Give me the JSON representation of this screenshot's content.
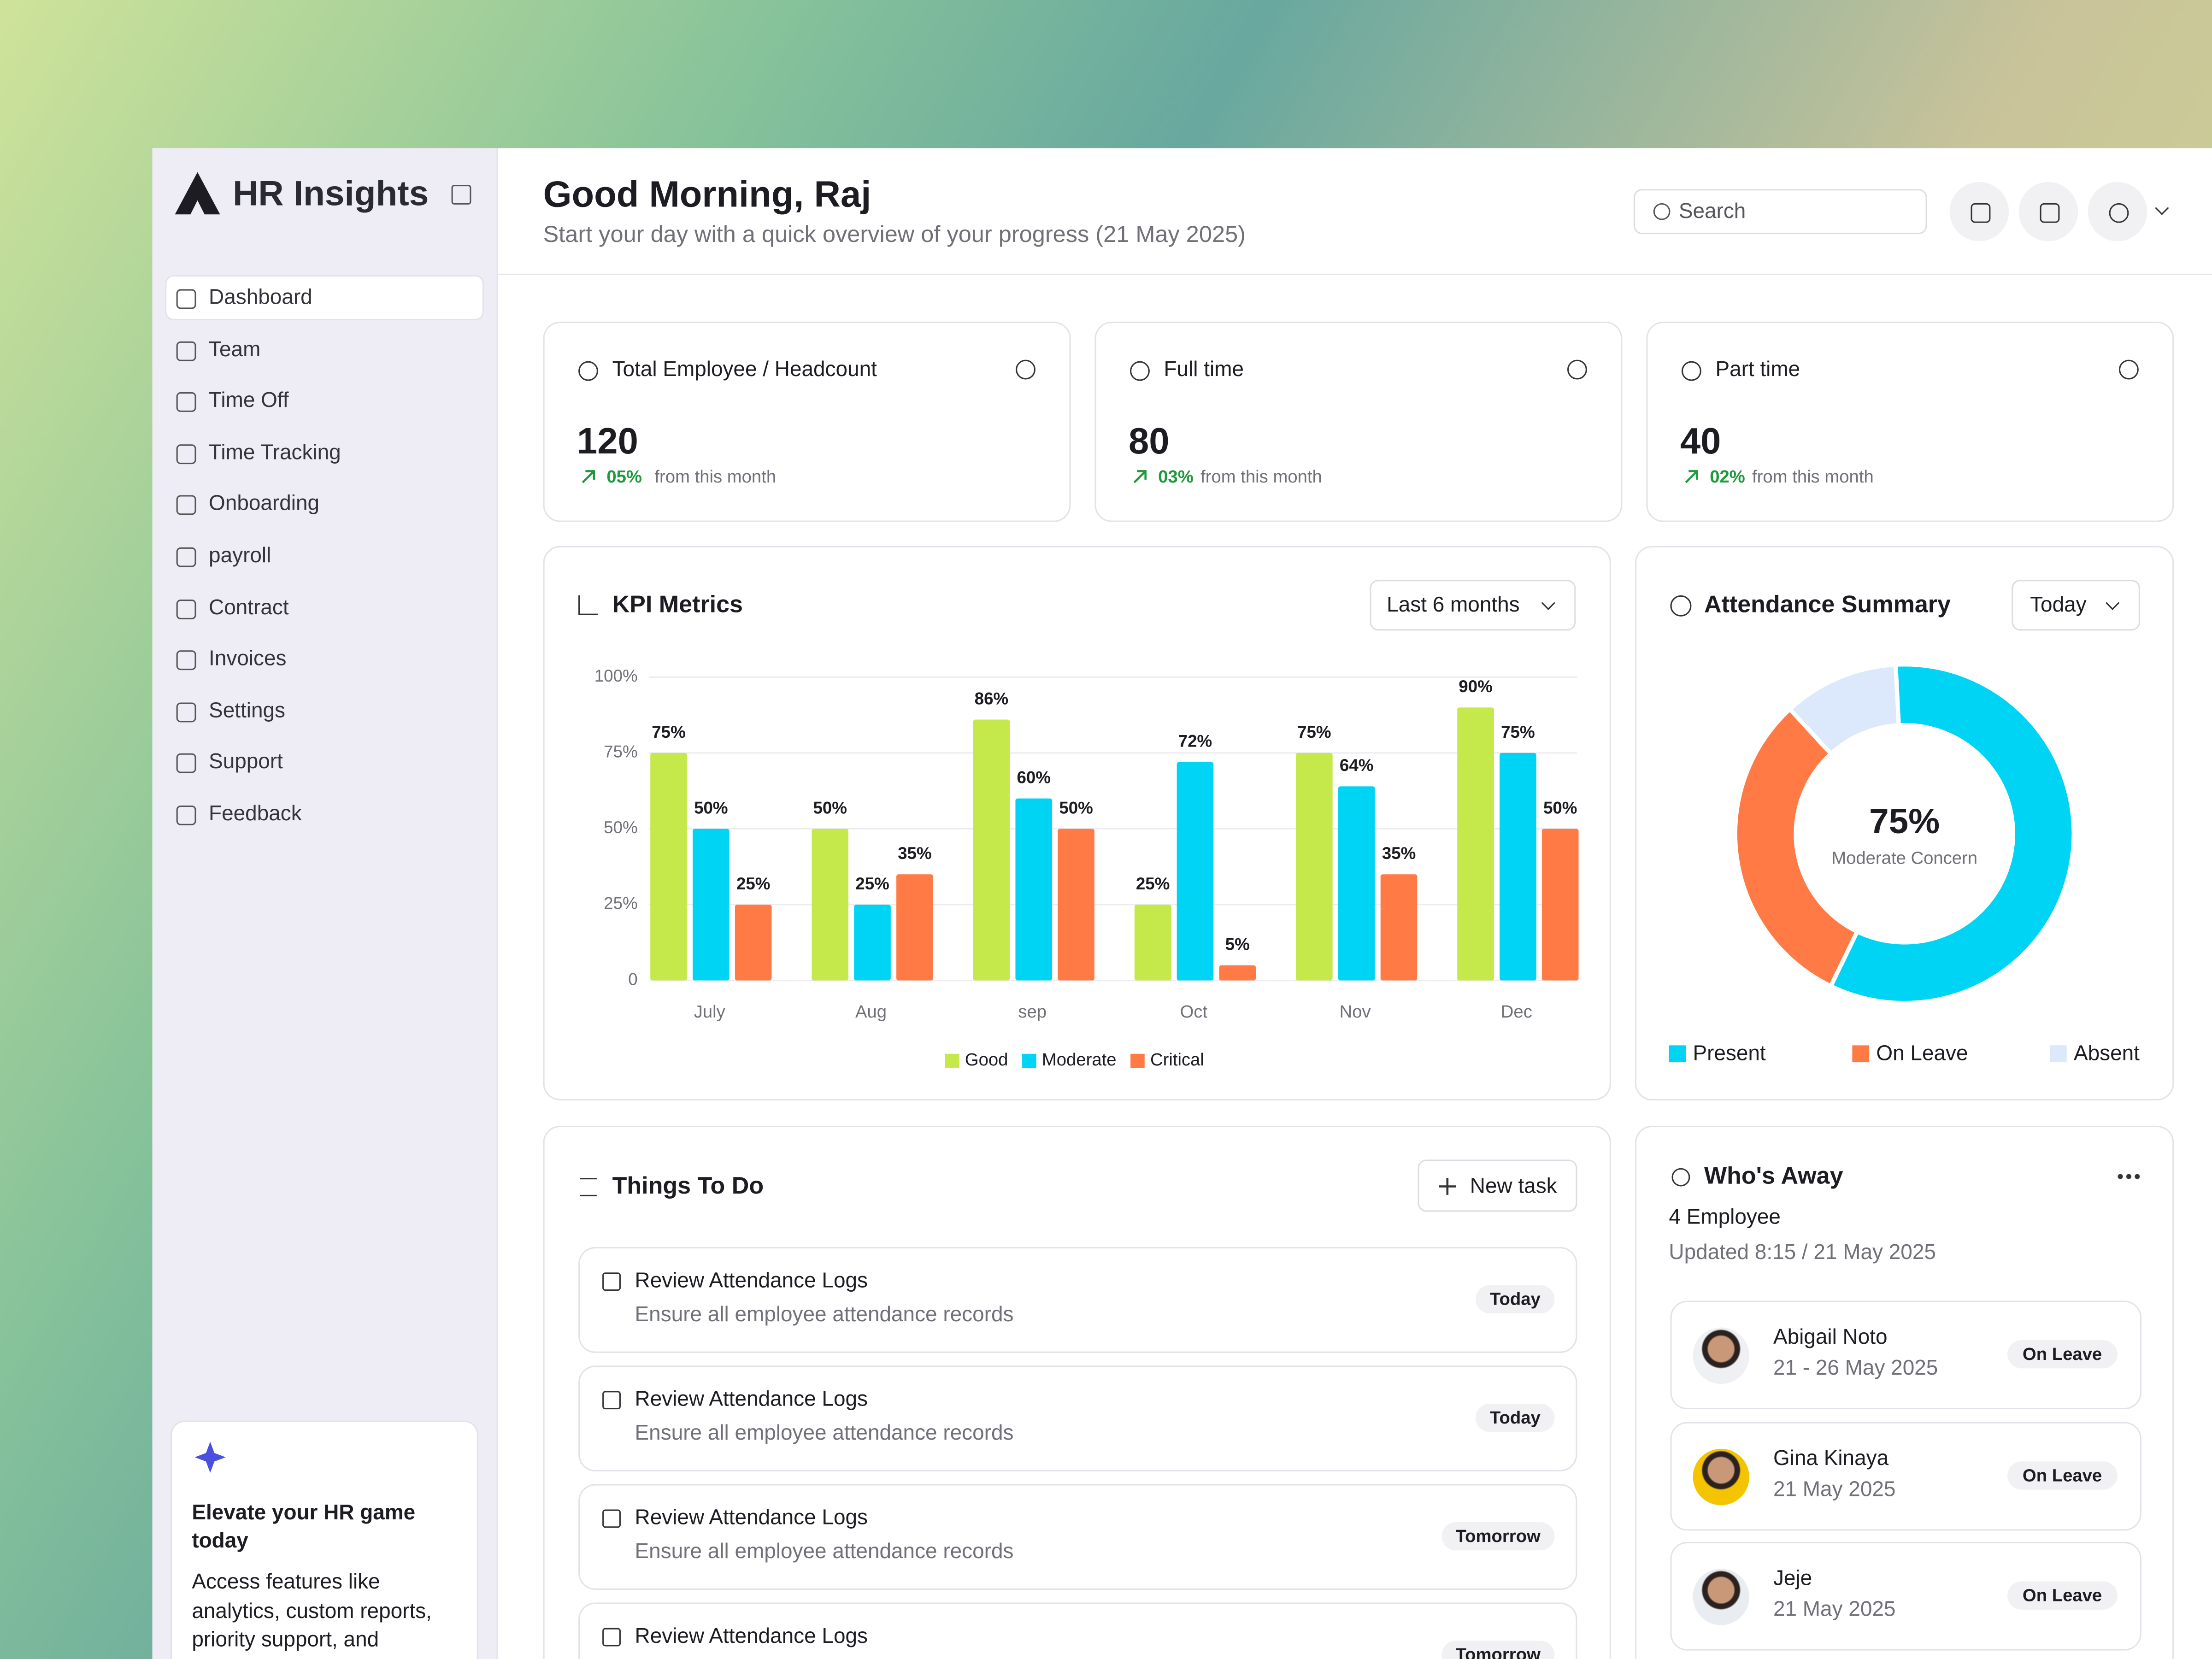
{
  "sidebar": {
    "brand": "HR Insights",
    "nav": [
      "Dashboard",
      "Team",
      "Time Off",
      "Time Tracking",
      "Onboarding",
      "payroll",
      "Contract",
      "Invoices",
      "Settings",
      "Support",
      "Feedback"
    ],
    "promo": {
      "title": "Elevate your HR game today",
      "text": "Access features like analytics, custom reports, priority support, and"
    }
  },
  "header": {
    "greeting": "Good Morning, Raj",
    "subtitle": "Start your day with a quick overview of your progress (21 May 2025)",
    "search": "Search"
  },
  "stats": [
    {
      "label": "Total Employee / Headcount",
      "value": 120,
      "change": "05%",
      "note": "from this month"
    },
    {
      "label": "Full time",
      "value": 80,
      "change": "03%",
      "note": "from this month"
    },
    {
      "label": "Part time",
      "value": 40,
      "change": "02%",
      "note": "from this month"
    }
  ],
  "kpi": {
    "filter": "Last 6 months"
  },
  "attendance": {
    "filter": "Today"
  },
  "todo": {
    "title": "Things To Do",
    "button": "New task",
    "items": [
      {
        "title": "Review Attendance Logs",
        "desc": "Ensure all employee attendance records",
        "due": "Today"
      },
      {
        "title": "Review Attendance Logs",
        "desc": "Ensure all employee attendance records",
        "due": "Today"
      },
      {
        "title": "Review Attendance Logs",
        "desc": "Ensure all employee attendance records",
        "due": "Tomorrow"
      },
      {
        "title": "Review Attendance Logs",
        "due": "Tomorrow"
      }
    ]
  },
  "away": {
    "title": "Who's Away",
    "count": "4 Employee",
    "updated": "Updated 8:15 / 21 May 2025",
    "people": [
      {
        "name": "Abigail Noto",
        "dates": "21 - 26 May 2025",
        "status": "On Leave"
      },
      {
        "name": "Gina Kinaya",
        "dates": "21 May 2025",
        "status": "On Leave"
      },
      {
        "name": "Jeje",
        "dates": "21 May 2025",
        "status": "On Leave"
      }
    ]
  },
  "chart_data": [
    {
      "type": "bar",
      "title": "KPI Metrics",
      "categories": [
        "July",
        "Aug",
        "sep",
        "Oct",
        "Nov",
        "Dec"
      ],
      "series": [
        {
          "name": "Good",
          "color": "#c5e84a",
          "values": [
            75,
            50,
            86,
            25,
            75,
            90
          ],
          "value_labels": [
            "75%",
            "50%",
            "86%",
            "25%",
            "75%",
            "90%"
          ]
        },
        {
          "name": "Moderate",
          "color": "#00d4f5",
          "values": [
            50,
            25,
            60,
            72,
            64,
            75
          ],
          "value_labels": [
            "50%",
            "25%",
            "60%",
            "72%",
            "64%",
            "75%"
          ]
        },
        {
          "name": "Critical",
          "color": "#ff7a45",
          "values": [
            25,
            35,
            50,
            5,
            35,
            50
          ],
          "value_labels": [
            "25%",
            "35%",
            "50%",
            "5%",
            "35%",
            "50%"
          ]
        }
      ],
      "ylim": [
        0,
        100
      ],
      "yticks": [
        0,
        {
          "value": 25,
          "label": "25%"
        },
        {
          "value": 50,
          "label": "50%"
        },
        {
          "value": 75,
          "label": "75%"
        },
        {
          "value": 100,
          "label": "100%"
        }
      ],
      "grid": true
    },
    {
      "type": "donut",
      "title": "Attendance Summary",
      "center_label": "75%",
      "center_note": "Moderate Concern",
      "categories": [
        "Present",
        "On Leave",
        "Absent"
      ],
      "values": [
        58,
        31,
        11
      ],
      "colors": [
        "#00d4f5",
        "#ff7a45",
        "#dce8fb"
      ]
    }
  ]
}
